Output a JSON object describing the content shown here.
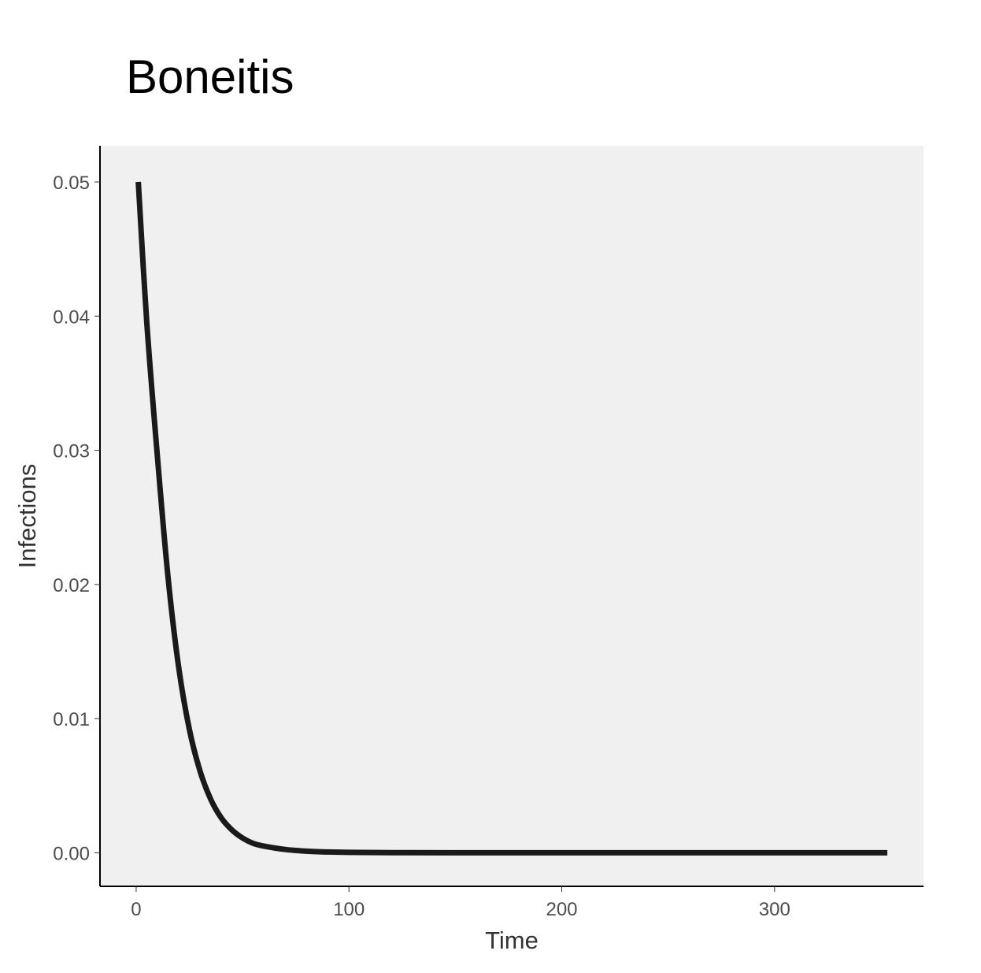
{
  "chart_data": {
    "type": "line",
    "title": "Boneitis",
    "xlabel": "Time",
    "ylabel": "Infections",
    "xlim": [
      -17,
      370
    ],
    "ylim": [
      -0.0025,
      0.0527
    ],
    "x_ticks": [
      0,
      100,
      200,
      300
    ],
    "x_tick_labels": [
      "0",
      "100",
      "200",
      "300"
    ],
    "y_ticks": [
      0.0,
      0.01,
      0.02,
      0.03,
      0.04,
      0.05
    ],
    "y_tick_labels": [
      "0.00",
      "0.01",
      "0.02",
      "0.03",
      "0.04",
      "0.05"
    ],
    "grid": false,
    "panel_background": "#f0f0f0",
    "axis_color": "#000000",
    "series": [
      {
        "color": "#1a1a1a",
        "x": [
          1,
          5,
          10,
          15,
          20,
          25,
          30,
          35,
          40,
          45,
          50,
          55,
          60,
          70,
          80,
          90,
          100,
          120,
          150,
          200,
          250,
          300,
          353
        ],
        "y": [
          0.05,
          0.0395,
          0.0295,
          0.0205,
          0.0138,
          0.0092,
          0.0061,
          0.004,
          0.0026,
          0.0017,
          0.0011,
          0.0007,
          0.0005,
          0.00025,
          0.00012,
          6e-05,
          3e-05,
          1e-05,
          0.0,
          0.0,
          0.0,
          0.0,
          0.0
        ]
      }
    ]
  }
}
